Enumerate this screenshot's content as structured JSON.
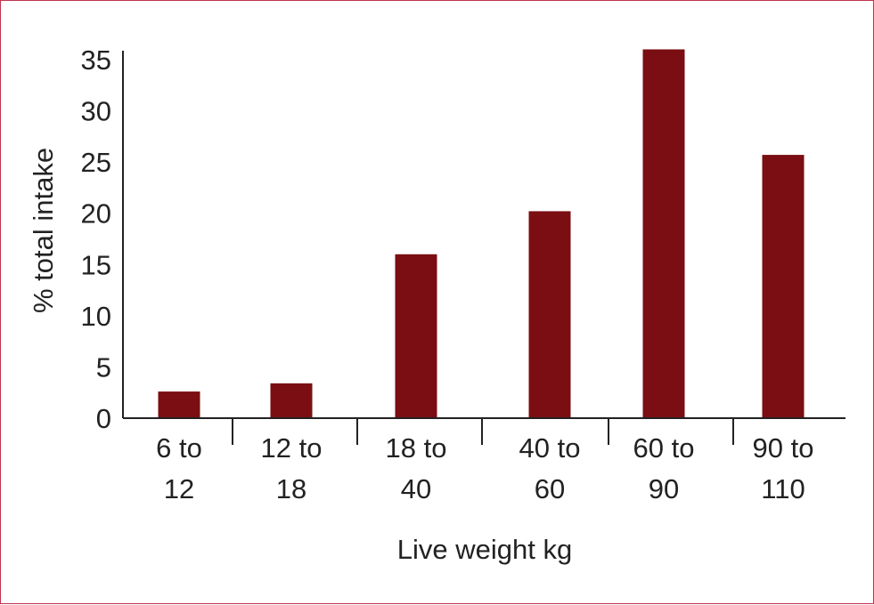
{
  "chart_data": {
    "type": "bar",
    "categories": [
      [
        "6 to",
        "12"
      ],
      [
        "12 to",
        "18"
      ],
      [
        "18 to",
        "40"
      ],
      [
        "40 to",
        "60"
      ],
      [
        "60 to",
        "90"
      ],
      [
        "90 to",
        "110"
      ]
    ],
    "values": [
      2.6,
      3.4,
      16.0,
      20.2,
      36.0,
      25.7
    ],
    "xlabel": "Live weight kg",
    "ylabel": "% total intake",
    "ylim": [
      0,
      35
    ],
    "yticks": [
      0,
      5,
      10,
      15,
      20,
      25,
      30,
      35
    ],
    "grid": false,
    "legend": "none",
    "colors": {
      "bar": "#7a0e12",
      "axis": "#222222",
      "frame": "#c0334f"
    }
  }
}
